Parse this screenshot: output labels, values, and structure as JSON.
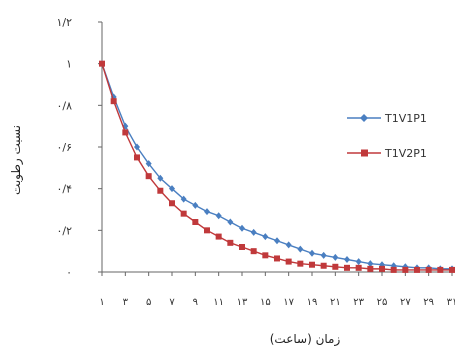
{
  "chart_data": {
    "type": "line",
    "xlabel": "زمان (ساعت)",
    "ylabel": "نسبت رطوبت",
    "ylim": [
      0,
      1.2
    ],
    "y_ticks": [
      "۰",
      "۰/۲",
      "۰/۴",
      "۰/۶",
      "۰/۸",
      "۱",
      "۱/۲"
    ],
    "y_tick_values": [
      0,
      0.2,
      0.4,
      0.6,
      0.8,
      1.0,
      1.2
    ],
    "x": [
      1,
      2,
      3,
      4,
      5,
      6,
      7,
      8,
      9,
      10,
      11,
      12,
      13,
      14,
      15,
      16,
      17,
      18,
      19,
      20,
      21,
      22,
      23,
      24,
      25,
      26,
      27,
      28,
      29,
      30,
      31
    ],
    "x_tick_labels": [
      "۱",
      "۳",
      "۵",
      "۷",
      "۹",
      "۱۱",
      "۱۳",
      "۱۵",
      "۱۷",
      "۱۹",
      "۲۱",
      "۲۳",
      "۲۵",
      "۲۷",
      "۲۹",
      "۳۱"
    ],
    "x_tick_values": [
      1,
      3,
      5,
      7,
      9,
      11,
      13,
      15,
      17,
      19,
      21,
      23,
      25,
      27,
      29,
      31
    ],
    "legend_position": "right",
    "series": [
      {
        "name": "T1V1P1",
        "color": "#4a7fc1",
        "marker": "diamond",
        "values": [
          1.0,
          0.84,
          0.7,
          0.6,
          0.52,
          0.45,
          0.4,
          0.35,
          0.32,
          0.29,
          0.27,
          0.24,
          0.21,
          0.19,
          0.17,
          0.15,
          0.13,
          0.11,
          0.09,
          0.08,
          0.07,
          0.06,
          0.05,
          0.04,
          0.035,
          0.03,
          0.025,
          0.02,
          0.02,
          0.015,
          0.015
        ]
      },
      {
        "name": "T1V2P1",
        "color": "#c0393b",
        "marker": "square",
        "values": [
          1.0,
          0.82,
          0.67,
          0.55,
          0.46,
          0.39,
          0.33,
          0.28,
          0.24,
          0.2,
          0.17,
          0.14,
          0.12,
          0.1,
          0.08,
          0.065,
          0.05,
          0.04,
          0.035,
          0.03,
          0.025,
          0.02,
          0.02,
          0.015,
          0.015,
          0.01,
          0.01,
          0.01,
          0.01,
          0.01,
          0.01
        ]
      }
    ]
  }
}
